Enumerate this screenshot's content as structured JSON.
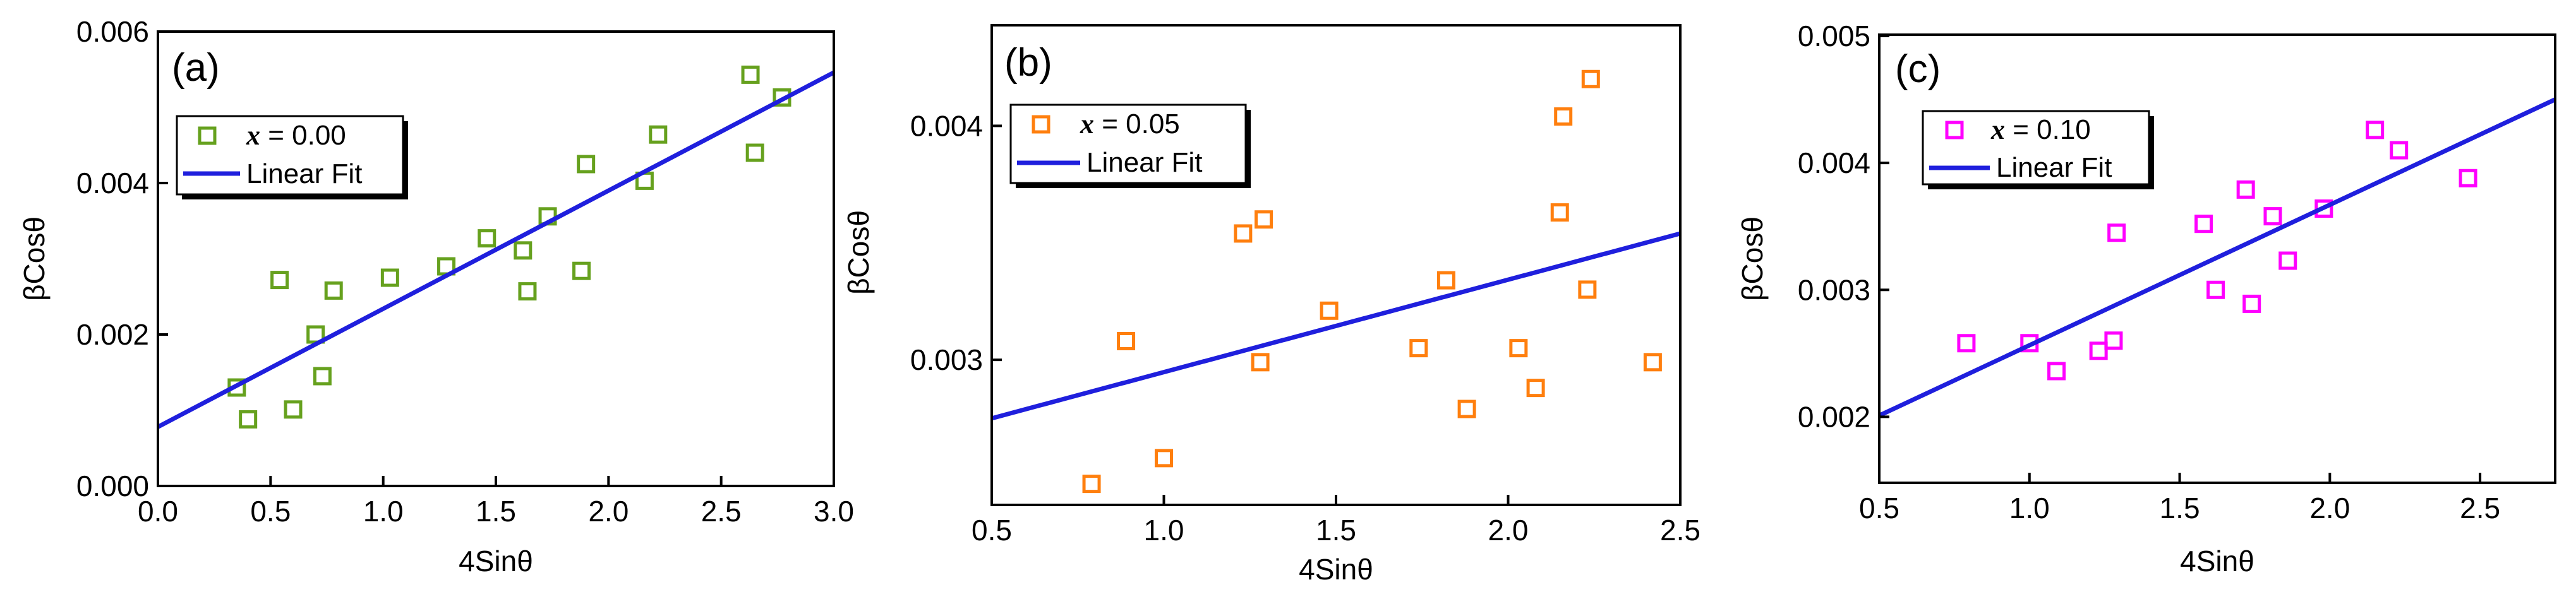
{
  "series_colors": {
    "a": "#66a11e",
    "b": "#ff7f0e",
    "c": "#ff00ff",
    "fit": "#1f1fdd"
  },
  "chart_data": [
    {
      "type": "scatter",
      "panel_label": "(a)",
      "xlabel": "4Sinθ",
      "ylabel": "βCosθ",
      "xlim": [
        0.0,
        3.0
      ],
      "ylim": [
        0.0,
        0.006
      ],
      "x_ticks": [
        "0.0",
        "0.5",
        "1.0",
        "1.5",
        "2.0",
        "2.5",
        "3.0"
      ],
      "x_tick_values": [
        0.0,
        0.5,
        1.0,
        1.5,
        2.0,
        2.5,
        3.0
      ],
      "y_ticks": [
        "0.000",
        "0.002",
        "0.004",
        "0.006"
      ],
      "y_tick_values": [
        0.0,
        0.002,
        0.004,
        0.006
      ],
      "legend": {
        "placement": "upper-left",
        "scatter_var": "x",
        "scatter_rest": " = 0.00",
        "fit_label": "Linear Fit"
      },
      "points": [
        {
          "x": 0.35,
          "y": 0.0013
        },
        {
          "x": 0.4,
          "y": 0.00088
        },
        {
          "x": 0.54,
          "y": 0.00272
        },
        {
          "x": 0.6,
          "y": 0.00101
        },
        {
          "x": 0.7,
          "y": 0.002
        },
        {
          "x": 0.73,
          "y": 0.00145
        },
        {
          "x": 0.78,
          "y": 0.00258
        },
        {
          "x": 1.03,
          "y": 0.00275
        },
        {
          "x": 1.28,
          "y": 0.0029
        },
        {
          "x": 1.46,
          "y": 0.00327
        },
        {
          "x": 1.62,
          "y": 0.00311
        },
        {
          "x": 1.64,
          "y": 0.00257
        },
        {
          "x": 1.73,
          "y": 0.00356
        },
        {
          "x": 1.88,
          "y": 0.00284
        },
        {
          "x": 1.9,
          "y": 0.00425
        },
        {
          "x": 2.16,
          "y": 0.00403
        },
        {
          "x": 2.22,
          "y": 0.00464
        },
        {
          "x": 2.63,
          "y": 0.00543
        },
        {
          "x": 2.65,
          "y": 0.0044
        },
        {
          "x": 2.77,
          "y": 0.00513
        }
      ],
      "fit_line": {
        "x": [
          0.0,
          3.0
        ],
        "y": [
          0.00078,
          0.00546
        ]
      }
    },
    {
      "type": "scatter",
      "panel_label": "(b)",
      "xlabel": "4Sinθ",
      "ylabel": "βCosθ",
      "xlim": [
        0.5,
        2.5
      ],
      "ylim": [
        0.00238,
        0.00443
      ],
      "x_ticks": [
        "0.5",
        "1.0",
        "1.5",
        "2.0",
        "2.5"
      ],
      "x_tick_values": [
        0.5,
        1.0,
        1.5,
        2.0,
        2.5
      ],
      "y_ticks": [
        "0.003",
        "0.004"
      ],
      "y_tick_values": [
        0.003,
        0.004
      ],
      "legend": {
        "placement": "upper-left",
        "scatter_var": "x",
        "scatter_rest": " = 0.05",
        "fit_label": "Linear Fit"
      },
      "points": [
        {
          "x": 0.79,
          "y": 0.00247
        },
        {
          "x": 0.89,
          "y": 0.00308
        },
        {
          "x": 1.0,
          "y": 0.00258
        },
        {
          "x": 1.23,
          "y": 0.00354
        },
        {
          "x": 1.28,
          "y": 0.00299
        },
        {
          "x": 1.29,
          "y": 0.0036
        },
        {
          "x": 1.48,
          "y": 0.00321
        },
        {
          "x": 1.74,
          "y": 0.00305
        },
        {
          "x": 1.82,
          "y": 0.00334
        },
        {
          "x": 1.88,
          "y": 0.00279
        },
        {
          "x": 2.03,
          "y": 0.00305
        },
        {
          "x": 2.08,
          "y": 0.00288
        },
        {
          "x": 2.15,
          "y": 0.00363
        },
        {
          "x": 2.16,
          "y": 0.00404
        },
        {
          "x": 2.23,
          "y": 0.0033
        },
        {
          "x": 2.24,
          "y": 0.0042
        },
        {
          "x": 2.42,
          "y": 0.00299
        }
      ],
      "fit_line": {
        "x": [
          0.5,
          2.5
        ],
        "y": [
          0.00275,
          0.00354
        ]
      }
    },
    {
      "type": "scatter",
      "panel_label": "(c)",
      "xlabel": "4Sinθ",
      "ylabel": "βCosθ",
      "xlim": [
        0.5,
        2.75
      ],
      "ylim": [
        0.00148,
        0.00501
      ],
      "x_ticks": [
        "0.5",
        "1.0",
        "1.5",
        "2.0",
        "2.5"
      ],
      "x_tick_values": [
        0.5,
        1.0,
        1.5,
        2.0,
        2.5
      ],
      "y_ticks": [
        "0.002",
        "0.003",
        "0.004",
        "0.005"
      ],
      "y_tick_values": [
        0.002,
        0.003,
        0.004,
        0.005
      ],
      "legend": {
        "placement": "upper-left",
        "scatter_var": "x",
        "scatter_rest": " = 0.10",
        "fit_label": "Linear Fit"
      },
      "points": [
        {
          "x": 0.79,
          "y": 0.00258
        },
        {
          "x": 1.0,
          "y": 0.00258
        },
        {
          "x": 1.09,
          "y": 0.00236
        },
        {
          "x": 1.23,
          "y": 0.00252
        },
        {
          "x": 1.28,
          "y": 0.0026
        },
        {
          "x": 1.29,
          "y": 0.00345
        },
        {
          "x": 1.58,
          "y": 0.00352
        },
        {
          "x": 1.62,
          "y": 0.003
        },
        {
          "x": 1.72,
          "y": 0.00379
        },
        {
          "x": 1.74,
          "y": 0.00289
        },
        {
          "x": 1.81,
          "y": 0.00358
        },
        {
          "x": 1.86,
          "y": 0.00323
        },
        {
          "x": 1.98,
          "y": 0.00364
        },
        {
          "x": 2.15,
          "y": 0.00426
        },
        {
          "x": 2.23,
          "y": 0.0041
        },
        {
          "x": 2.46,
          "y": 0.00388
        }
      ],
      "fit_line": {
        "x": [
          0.5,
          2.75
        ],
        "y": [
          0.00201,
          0.0045
        ]
      }
    }
  ]
}
